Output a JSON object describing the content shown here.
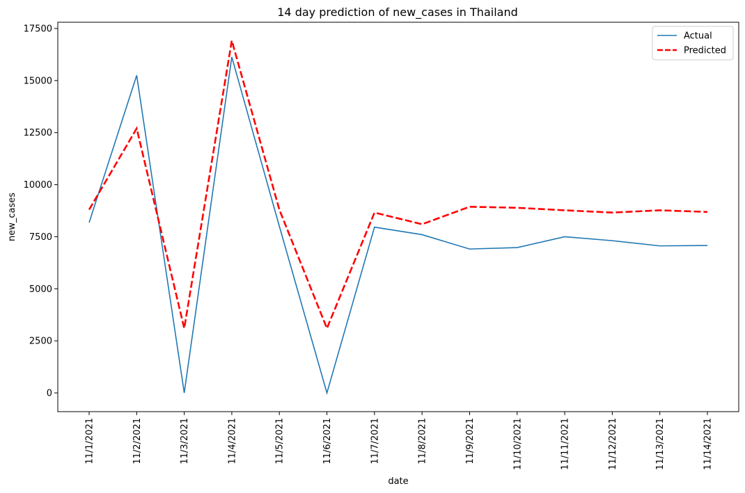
{
  "chart_data": {
    "type": "line",
    "title": "14 day prediction of new_cases in Thailand",
    "xlabel": "date",
    "ylabel": "new_cases",
    "x": [
      "11/1/2021",
      "11/2/2021",
      "11/3/2021",
      "11/4/2021",
      "11/5/2021",
      "11/6/2021",
      "11/7/2021",
      "11/8/2021",
      "11/9/2021",
      "11/10/2021",
      "11/11/2021",
      "11/12/2021",
      "11/13/2021",
      "11/14/2021"
    ],
    "ylim": [
      -900,
      17800
    ],
    "yticks": [
      0,
      2500,
      5000,
      7500,
      10000,
      12500,
      15000,
      17500
    ],
    "grid": false,
    "legend": "top-right",
    "series": [
      {
        "name": "Actual",
        "color": "#1f77b4",
        "style": "solid",
        "values": [
          8180,
          15250,
          0,
          16130,
          8000,
          0,
          7960,
          7600,
          6910,
          6980,
          7500,
          7310,
          7060,
          7080
        ]
      },
      {
        "name": "Predicted",
        "color": "#ff0000",
        "style": "dashed",
        "values": [
          8800,
          12700,
          3100,
          16920,
          8800,
          3100,
          8660,
          8100,
          8940,
          8890,
          8770,
          8660,
          8770,
          8690
        ]
      }
    ]
  }
}
